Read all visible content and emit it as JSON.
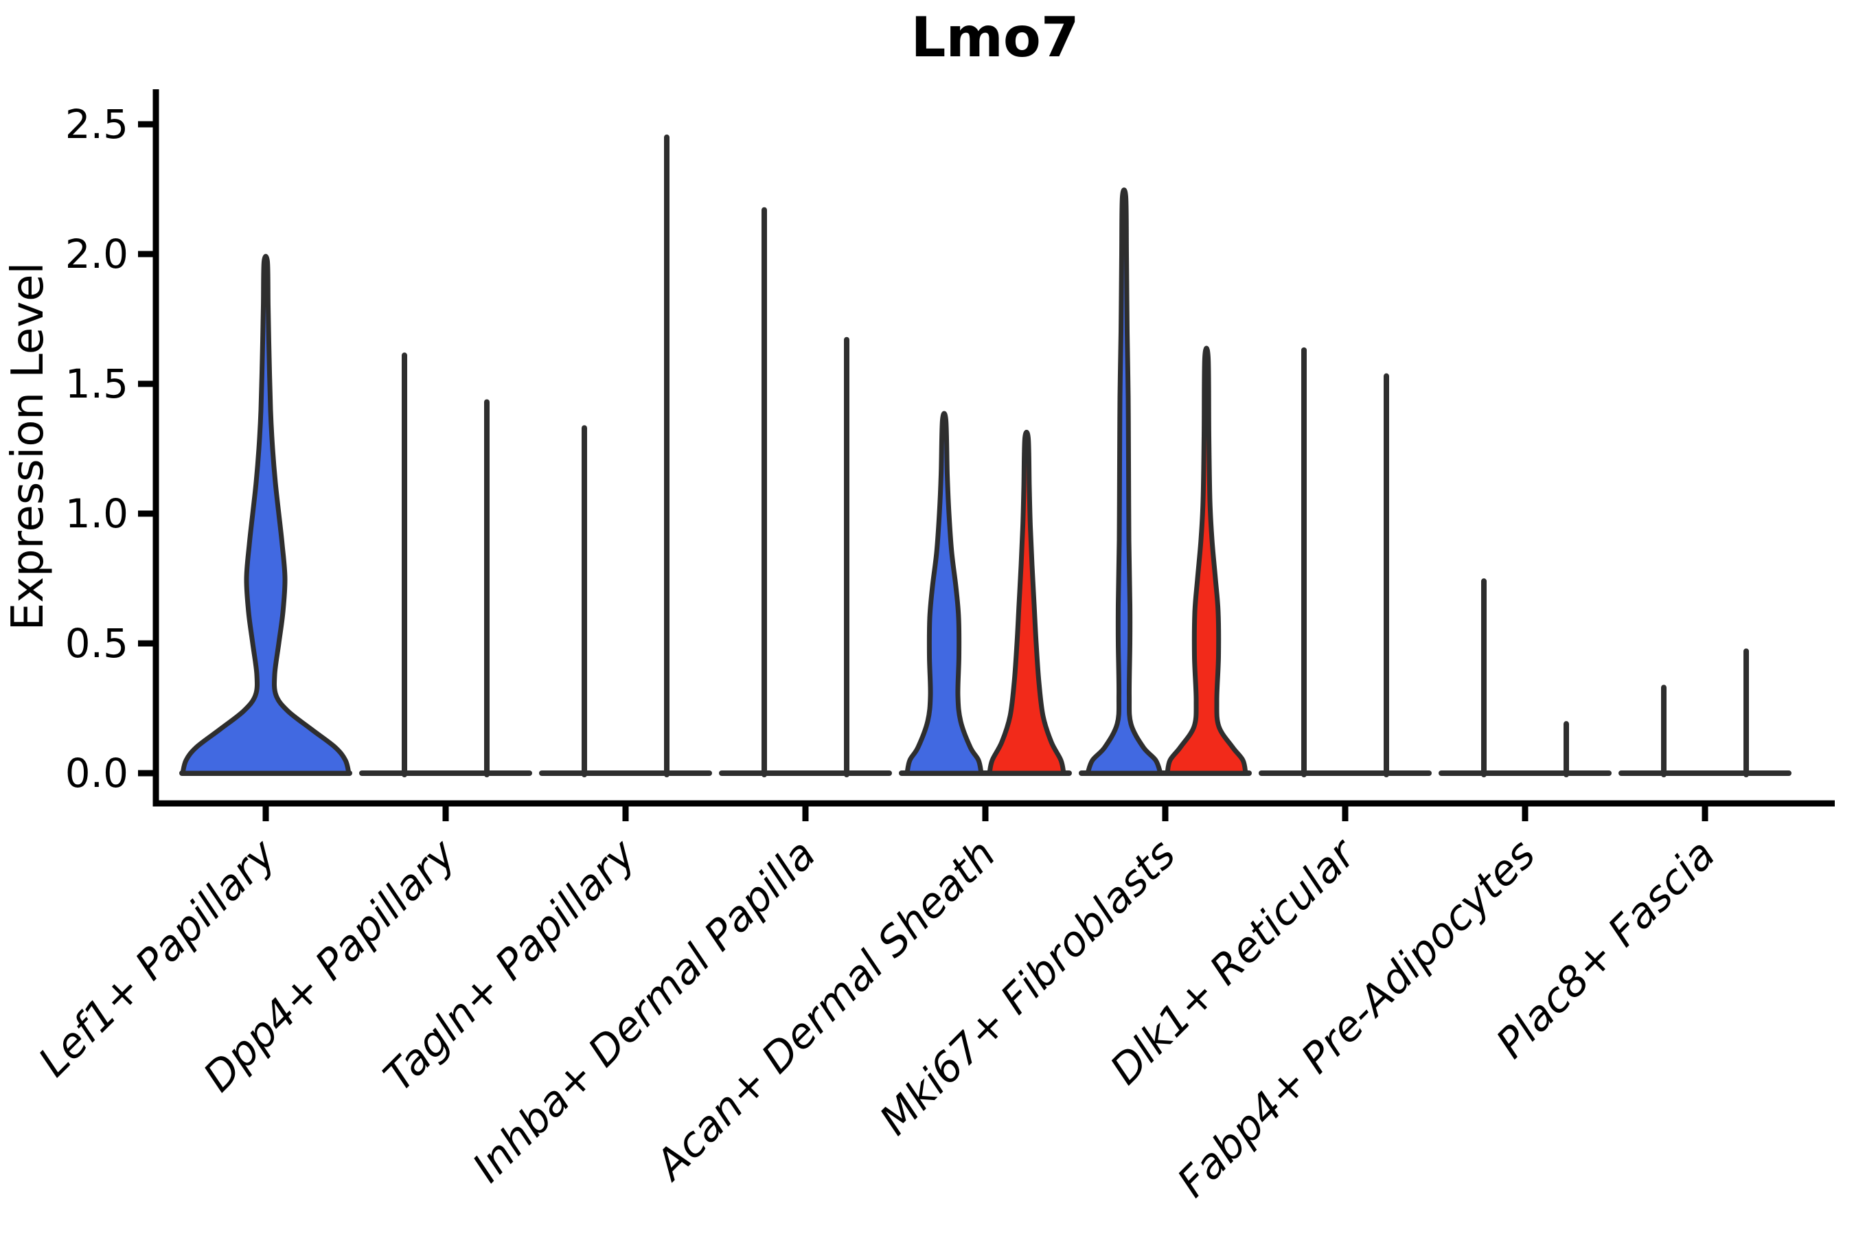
{
  "title": "Lmo7",
  "axes": {
    "y_label": "Expression Level",
    "y_tick_labels": [
      "0.0",
      "0.5",
      "1.0",
      "1.5",
      "2.0",
      "2.5"
    ]
  },
  "colors": {
    "blue_fill": "#4169E1",
    "red_fill": "#F22A1A",
    "violin_outline": "#2E2E2E",
    "axis": "#000000",
    "background": "#FFFFFF"
  },
  "chart_data": {
    "type": "violin",
    "title": "Lmo7",
    "xlabel": "",
    "ylabel": "Expression Level",
    "ylim": [
      0,
      2.5
    ],
    "y_ticks": [
      0.0,
      0.5,
      1.0,
      1.5,
      2.0,
      2.5
    ],
    "y_tick_labels": [
      "0.0",
      "0.5",
      "1.0",
      "1.5",
      "2.0",
      "2.5"
    ],
    "grid": false,
    "legend": "none",
    "categories": [
      "Lef1+ Papillary",
      "Dpp4+ Papillary",
      "Tagln+ Papillary",
      "Inhba+ Dermal Papilla",
      "Acan+ Dermal Sheath",
      "Mki67+ Fibroblasts",
      "Dlk1+ Reticular",
      "Fabp4+ Pre-Adipocytes",
      "Plac8+ Fascia"
    ],
    "series": [
      {
        "name": "blue",
        "color": "#4169E1",
        "max_expression": [
          1.97,
          1.61,
          1.33,
          2.17,
          1.36,
          2.22,
          1.63,
          0.74,
          0.33
        ]
      },
      {
        "name": "red",
        "color": "#F22A1A",
        "max_expression": [
          null,
          1.43,
          2.45,
          1.67,
          1.29,
          1.6,
          1.53,
          0.19,
          0.47
        ]
      }
    ],
    "violins": [
      {
        "category_index": 0,
        "side": "center",
        "series": "blue",
        "shape": "violin",
        "max": 1.97,
        "profile": [
          [
            0,
            121
          ],
          [
            0.05,
            116
          ],
          [
            0.1,
            101
          ],
          [
            0.17,
            66
          ],
          [
            0.24,
            32
          ],
          [
            0.3,
            15
          ],
          [
            0.38,
            13
          ],
          [
            0.5,
            19
          ],
          [
            0.62,
            25
          ],
          [
            0.75,
            28
          ],
          [
            0.88,
            24
          ],
          [
            1.0,
            19
          ],
          [
            1.12,
            14
          ],
          [
            1.25,
            10
          ],
          [
            1.4,
            7
          ],
          [
            1.6,
            5
          ],
          [
            1.8,
            3.5
          ],
          [
            1.97,
            2.5
          ]
        ]
      },
      {
        "category_index": 1,
        "side": "left",
        "series": "blue",
        "shape": "spike",
        "max": 1.61
      },
      {
        "category_index": 1,
        "side": "right",
        "series": "red",
        "shape": "spike",
        "max": 1.43
      },
      {
        "category_index": 2,
        "side": "left",
        "series": "blue",
        "shape": "spike",
        "max": 1.33
      },
      {
        "category_index": 2,
        "side": "right",
        "series": "red",
        "shape": "spike",
        "max": 2.45
      },
      {
        "category_index": 3,
        "side": "left",
        "series": "blue",
        "shape": "spike",
        "max": 2.17
      },
      {
        "category_index": 3,
        "side": "right",
        "series": "red",
        "shape": "spike",
        "max": 1.67
      },
      {
        "category_index": 4,
        "side": "left",
        "series": "blue",
        "shape": "violin",
        "max": 1.36,
        "profile": [
          [
            0,
            54
          ],
          [
            0.05,
            50
          ],
          [
            0.1,
            38
          ],
          [
            0.2,
            24
          ],
          [
            0.3,
            20
          ],
          [
            0.45,
            21.5
          ],
          [
            0.6,
            21
          ],
          [
            0.72,
            17
          ],
          [
            0.85,
            11
          ],
          [
            1.0,
            7
          ],
          [
            1.15,
            4.5
          ],
          [
            1.36,
            2.5
          ]
        ]
      },
      {
        "category_index": 4,
        "side": "right",
        "series": "red",
        "shape": "violin",
        "max": 1.29,
        "profile": [
          [
            0,
            54
          ],
          [
            0.05,
            50
          ],
          [
            0.12,
            36
          ],
          [
            0.22,
            24
          ],
          [
            0.35,
            18
          ],
          [
            0.5,
            14
          ],
          [
            0.65,
            11
          ],
          [
            0.8,
            8
          ],
          [
            0.95,
            5.5
          ],
          [
            1.1,
            4
          ],
          [
            1.29,
            2.5
          ]
        ]
      },
      {
        "category_index": 5,
        "side": "left",
        "series": "blue",
        "shape": "violin",
        "max": 2.22,
        "profile": [
          [
            0,
            53
          ],
          [
            0.05,
            46
          ],
          [
            0.1,
            28
          ],
          [
            0.19,
            10
          ],
          [
            0.3,
            7.5
          ],
          [
            0.5,
            8.5
          ],
          [
            0.65,
            8.5
          ],
          [
            0.9,
            7
          ],
          [
            1.2,
            6.5
          ],
          [
            1.45,
            6
          ],
          [
            1.7,
            4.5
          ],
          [
            2.0,
            3.5
          ],
          [
            2.22,
            2.5
          ]
        ]
      },
      {
        "category_index": 5,
        "side": "right",
        "series": "red",
        "shape": "violin",
        "max": 1.6,
        "profile": [
          [
            0,
            57
          ],
          [
            0.05,
            53
          ],
          [
            0.1,
            38
          ],
          [
            0.18,
            18
          ],
          [
            0.28,
            15
          ],
          [
            0.45,
            17.5
          ],
          [
            0.62,
            17
          ],
          [
            0.75,
            13
          ],
          [
            0.9,
            8
          ],
          [
            1.05,
            5
          ],
          [
            1.3,
            3.5
          ],
          [
            1.6,
            2.5
          ]
        ]
      },
      {
        "category_index": 6,
        "side": "left",
        "series": "blue",
        "shape": "spike",
        "max": 1.63
      },
      {
        "category_index": 6,
        "side": "right",
        "series": "red",
        "shape": "spike",
        "max": 1.53
      },
      {
        "category_index": 7,
        "side": "left",
        "series": "blue",
        "shape": "spike",
        "max": 0.74
      },
      {
        "category_index": 7,
        "side": "right",
        "series": "red",
        "shape": "spike",
        "max": 0.19
      },
      {
        "category_index": 8,
        "side": "left",
        "series": "blue",
        "shape": "spike",
        "max": 0.33
      },
      {
        "category_index": 8,
        "side": "right",
        "series": "red",
        "shape": "spike",
        "max": 0.47
      }
    ]
  }
}
